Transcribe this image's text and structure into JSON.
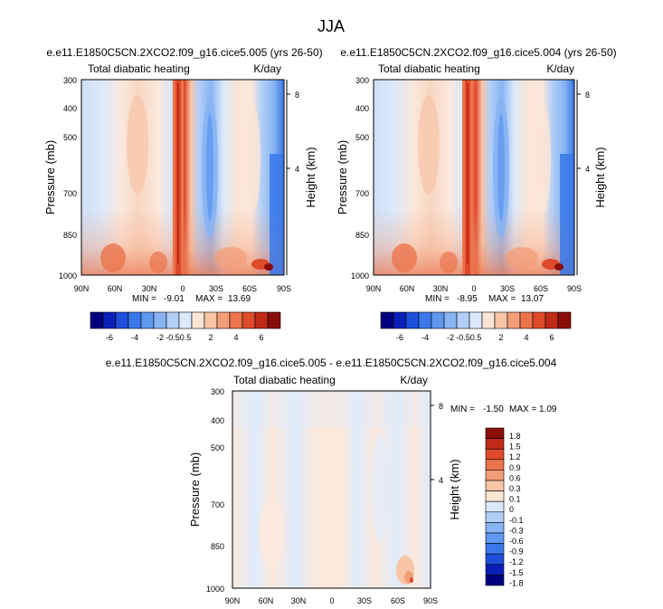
{
  "figure_title": "JJA",
  "chart_data": [
    {
      "type": "heatmap",
      "title": "e.e11.E1850C5CN.2XCO2.f09_g16.cice5.005 (yrs 26-50)",
      "subtitle_left": "Total diabatic heating",
      "subtitle_right": "K/day",
      "xlabel": "",
      "ylabel": "Pressure (mb)",
      "ylabel_right": "Height (km)",
      "x_ticks": [
        "90N",
        "60N",
        "30N",
        "0",
        "30S",
        "60S",
        "90S"
      ],
      "y_ticks": [
        "300",
        "400",
        "500",
        "700",
        "850",
        "1000"
      ],
      "y_scale": "log",
      "ylim": [
        1000,
        300
      ],
      "height_ticks": [
        "8",
        "4"
      ],
      "stats": {
        "min_label": "MIN =",
        "min": "-9.01",
        "max_label": "MAX =",
        "max": "13.69"
      },
      "legend": "horizontal colorbar below panel"
    },
    {
      "type": "heatmap",
      "title": "e.e11.E1850C5CN.2XCO2.f09_g16.cice5.004 (yrs 26-50)",
      "subtitle_left": "Total diabatic heating",
      "subtitle_right": "K/day",
      "xlabel": "",
      "ylabel": "Pressure (mb)",
      "ylabel_right": "Height (km)",
      "x_ticks": [
        "90N",
        "60N",
        "30N",
        "0",
        "30S",
        "60S",
        "90S"
      ],
      "y_ticks": [
        "300",
        "400",
        "500",
        "700",
        "850",
        "1000"
      ],
      "y_scale": "log",
      "ylim": [
        1000,
        300
      ],
      "height_ticks": [
        "8",
        "4"
      ],
      "stats": {
        "min_label": "MIN =",
        "min": "-8.95",
        "max_label": "MAX =",
        "max": "13.07"
      },
      "legend": "horizontal colorbar below panel"
    },
    {
      "type": "heatmap",
      "title": "e.e11.E1850C5CN.2XCO2.f09_g16.cice5.005 - e.e11.E1850C5CN.2XCO2.f09_g16.cice5.004",
      "subtitle_left": "Total diabatic heating",
      "subtitle_right": "K/day",
      "xlabel": "",
      "ylabel": "Pressure (mb)",
      "ylabel_right": "Height (km)",
      "x_ticks": [
        "90N",
        "60N",
        "30N",
        "0",
        "30S",
        "60S",
        "90S"
      ],
      "y_ticks": [
        "300",
        "400",
        "500",
        "700",
        "850",
        "1000"
      ],
      "y_scale": "log",
      "ylim": [
        1000,
        300
      ],
      "height_ticks": [
        "8",
        "4"
      ],
      "stats": {
        "min_label": "MIN =",
        "min": "-1.50",
        "max_label": "MAX =",
        "max": "1.09"
      },
      "legend": "vertical colorbar right of panel"
    }
  ],
  "colorbars": {
    "top": {
      "colors": [
        "#00007f",
        "#0a1fb7",
        "#1d4fdb",
        "#3a78ea",
        "#5f98f0",
        "#88b4f3",
        "#b2cff7",
        "#dbe9fb",
        "#fbe5d4",
        "#f8c5a6",
        "#f39e78",
        "#eb744c",
        "#de4a2a",
        "#c02a17",
        "#8a0d0a"
      ],
      "labels": [
        "-6",
        "-4",
        "-2",
        "-0.5",
        "0.5",
        "2",
        "4",
        "6"
      ]
    },
    "diff": {
      "colors": [
        "#00007f",
        "#0a1fb7",
        "#1d4fdb",
        "#3a78ea",
        "#5f98f0",
        "#88b4f3",
        "#b2cff7",
        "#dbe9fb",
        "#fbe5d4",
        "#f8c5a6",
        "#f39e78",
        "#eb744c",
        "#de4a2a",
        "#c02a17",
        "#8a0d0a"
      ],
      "labels": [
        "1.8",
        "1.5",
        "1.2",
        "0.9",
        "0.6",
        "0.3",
        "0.1",
        "0",
        "-0.1",
        "-0.3",
        "-0.6",
        "-0.9",
        "-1.2",
        "-1.5",
        "-1.8"
      ]
    }
  }
}
